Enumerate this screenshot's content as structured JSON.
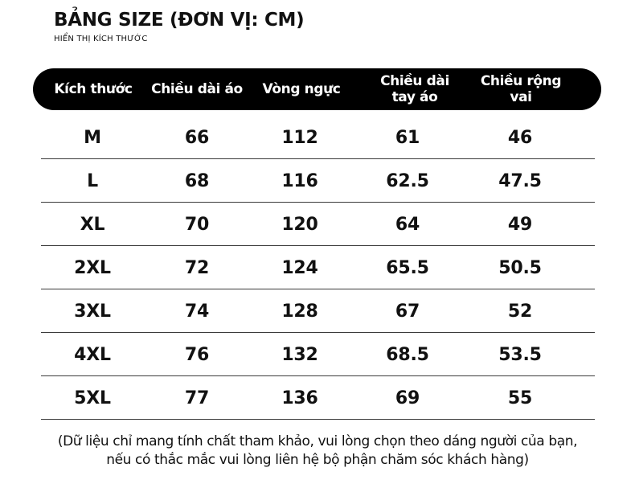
{
  "title": "BẢNG SIZE (ĐƠN VỊ: CM)",
  "subtitle": "HIỂN THỊ KÍCH THƯỚC",
  "table": {
    "headers": [
      [
        "Kích thước"
      ],
      [
        "Chiều dài áo"
      ],
      [
        "Vòng ngực"
      ],
      [
        "Chiều dài",
        "tay áo"
      ],
      [
        "Chiều rộng",
        "vai"
      ]
    ],
    "rows": [
      [
        "M",
        "66",
        "112",
        "61",
        "46"
      ],
      [
        "L",
        "68",
        "116",
        "62.5",
        "47.5"
      ],
      [
        "XL",
        "70",
        "120",
        "64",
        "49"
      ],
      [
        "2XL",
        "72",
        "124",
        "65.5",
        "50.5"
      ],
      [
        "3XL",
        "74",
        "128",
        "67",
        "52"
      ],
      [
        "4XL",
        "76",
        "132",
        "68.5",
        "53.5"
      ],
      [
        "5XL",
        "77",
        "136",
        "69",
        "55"
      ]
    ]
  },
  "note": {
    "line1": "(Dữ liệu chỉ mang tính chất tham khảo, vui lòng chọn theo dáng người của bạn,",
    "line2": "nếu có thắc mắc vui lòng liên hệ bộ phận chăm sóc khách hàng)"
  }
}
